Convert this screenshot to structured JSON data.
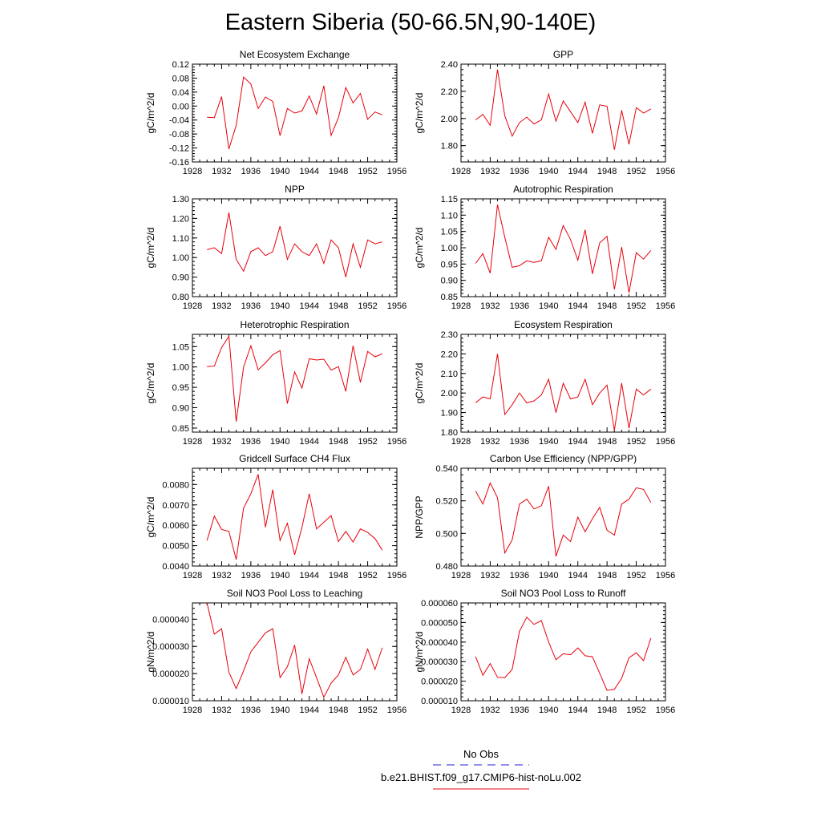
{
  "title": "Eastern Siberia (50-66.5N,90-140E)",
  "colors": {
    "model": "#e8000b",
    "obs": "#1f1fd0"
  },
  "legend": {
    "obs_label": "No Obs",
    "model_label": "b.e21.BHIST.f09_g17.CMIP6-hist-noLu.002"
  },
  "chart_data": [
    {
      "type": "line",
      "title": "Net Ecosystem Exchange",
      "ylabel": "gC/m^2/d",
      "xlim": [
        1928,
        1956
      ],
      "xticks": [
        1928,
        1932,
        1936,
        1940,
        1944,
        1948,
        1952,
        1956
      ],
      "ylim": [
        -0.16,
        0.12
      ],
      "yticks": [
        "-0.16",
        "-0.12",
        "-0.08",
        "-0.04",
        "0.00",
        "0.04",
        "0.08",
        "0.12"
      ],
      "x": [
        1930,
        1931,
        1932,
        1933,
        1934,
        1935,
        1936,
        1937,
        1938,
        1939,
        1940,
        1941,
        1942,
        1943,
        1944,
        1945,
        1946,
        1947,
        1948,
        1949,
        1950,
        1951,
        1952,
        1953,
        1954
      ],
      "series": [
        {
          "values": [
            -0.032,
            -0.033,
            0.027,
            -0.123,
            -0.055,
            0.083,
            0.063,
            -0.007,
            0.026,
            0.013,
            -0.085,
            -0.007,
            -0.02,
            -0.014,
            0.029,
            -0.023,
            0.058,
            -0.084,
            -0.033,
            0.053,
            0.009,
            0.036,
            -0.038,
            -0.017,
            -0.025
          ]
        }
      ]
    },
    {
      "type": "line",
      "title": "GPP",
      "ylabel": "gC/m^2/d",
      "xlim": [
        1928,
        1956
      ],
      "xticks": [
        1928,
        1932,
        1936,
        1940,
        1944,
        1948,
        1952,
        1956
      ],
      "ylim": [
        1.68,
        2.4
      ],
      "yticks": [
        "1.80",
        "2.00",
        "2.20",
        "2.40"
      ],
      "x": [
        1930,
        1931,
        1932,
        1933,
        1934,
        1935,
        1936,
        1937,
        1938,
        1939,
        1940,
        1941,
        1942,
        1943,
        1944,
        1945,
        1946,
        1947,
        1948,
        1949,
        1950,
        1951,
        1952,
        1953,
        1954
      ],
      "series": [
        {
          "values": [
            1.99,
            2.03,
            1.95,
            2.36,
            2.02,
            1.87,
            1.97,
            2.01,
            1.96,
            1.99,
            2.18,
            1.98,
            2.13,
            2.05,
            1.97,
            2.12,
            1.89,
            2.1,
            2.09,
            1.77,
            2.06,
            1.81,
            2.08,
            2.04,
            2.07
          ]
        }
      ]
    },
    {
      "type": "line",
      "title": "NPP",
      "ylabel": "gC/m^2/d",
      "xlim": [
        1928,
        1956
      ],
      "xticks": [
        1928,
        1932,
        1936,
        1940,
        1944,
        1948,
        1952,
        1956
      ],
      "ylim": [
        0.8,
        1.3
      ],
      "yticks": [
        "0.80",
        "0.90",
        "1.00",
        "1.10",
        "1.20",
        "1.30"
      ],
      "x": [
        1930,
        1931,
        1932,
        1933,
        1934,
        1935,
        1936,
        1937,
        1938,
        1939,
        1940,
        1941,
        1942,
        1943,
        1944,
        1945,
        1946,
        1947,
        1948,
        1949,
        1950,
        1951,
        1952,
        1953,
        1954
      ],
      "series": [
        {
          "values": [
            1.04,
            1.05,
            1.02,
            1.23,
            0.99,
            0.93,
            1.03,
            1.05,
            1.01,
            1.03,
            1.16,
            0.99,
            1.07,
            1.03,
            1.01,
            1.07,
            0.97,
            1.09,
            1.05,
            0.9,
            1.07,
            0.95,
            1.09,
            1.07,
            1.08
          ]
        }
      ]
    },
    {
      "type": "line",
      "title": "Autotrophic Respiration",
      "ylabel": "gC/m^2/d",
      "xlim": [
        1928,
        1956
      ],
      "xticks": [
        1928,
        1932,
        1936,
        1940,
        1944,
        1948,
        1952,
        1956
      ],
      "ylim": [
        0.85,
        1.15
      ],
      "yticks": [
        "0.85",
        "0.90",
        "0.95",
        "1.00",
        "1.05",
        "1.10",
        "1.15"
      ],
      "x": [
        1930,
        1931,
        1932,
        1933,
        1934,
        1935,
        1936,
        1937,
        1938,
        1939,
        1940,
        1941,
        1942,
        1943,
        1944,
        1945,
        1946,
        1947,
        1948,
        1949,
        1950,
        1951,
        1952,
        1953,
        1954
      ],
      "series": [
        {
          "values": [
            0.952,
            0.982,
            0.922,
            1.132,
            1.032,
            0.94,
            0.945,
            0.96,
            0.955,
            0.96,
            1.032,
            0.995,
            1.068,
            1.025,
            0.962,
            1.055,
            0.92,
            1.015,
            1.035,
            0.872,
            1.002,
            0.862,
            0.985,
            0.965,
            0.992
          ]
        }
      ]
    },
    {
      "type": "line",
      "title": "Heterotrophic Respiration",
      "ylabel": "gC/m^2/d",
      "xlim": [
        1928,
        1956
      ],
      "xticks": [
        1928,
        1932,
        1936,
        1940,
        1944,
        1948,
        1952,
        1956
      ],
      "ylim": [
        0.84,
        1.08
      ],
      "yticks": [
        "0.85",
        "0.90",
        "0.95",
        "1.00",
        "1.05"
      ],
      "x": [
        1930,
        1931,
        1932,
        1933,
        1934,
        1935,
        1936,
        1937,
        1938,
        1939,
        1940,
        1941,
        1942,
        1943,
        1944,
        1945,
        1946,
        1947,
        1948,
        1949,
        1950,
        1951,
        1952,
        1953,
        1954
      ],
      "series": [
        {
          "values": [
            1.001,
            1.002,
            1.048,
            1.075,
            0.866,
            1.0,
            1.052,
            0.993,
            1.01,
            1.03,
            1.04,
            0.91,
            0.988,
            0.948,
            1.02,
            1.017,
            1.019,
            0.992,
            1.001,
            0.94,
            1.052,
            0.962,
            1.038,
            1.025,
            1.032
          ]
        }
      ]
    },
    {
      "type": "line",
      "title": "Ecosystem Respiration",
      "ylabel": "gC/m^2/d",
      "xlim": [
        1928,
        1956
      ],
      "xticks": [
        1928,
        1932,
        1936,
        1940,
        1944,
        1948,
        1952,
        1956
      ],
      "ylim": [
        1.8,
        2.3
      ],
      "yticks": [
        "1.80",
        "1.90",
        "2.00",
        "2.10",
        "2.20",
        "2.30"
      ],
      "x": [
        1930,
        1931,
        1932,
        1933,
        1934,
        1935,
        1936,
        1937,
        1938,
        1939,
        1940,
        1941,
        1942,
        1943,
        1944,
        1945,
        1946,
        1947,
        1948,
        1949,
        1950,
        1951,
        1952,
        1953,
        1954
      ],
      "series": [
        {
          "values": [
            1.95,
            1.98,
            1.97,
            2.2,
            1.89,
            1.94,
            2.0,
            1.95,
            1.96,
            1.99,
            2.07,
            1.9,
            2.05,
            1.97,
            1.98,
            2.07,
            1.94,
            2.0,
            2.04,
            1.81,
            2.05,
            1.82,
            2.02,
            1.99,
            2.02
          ]
        }
      ]
    },
    {
      "type": "line",
      "title": "Gridcell Surface CH4 Flux",
      "ylabel": "gC/m^2/d",
      "xlim": [
        1928,
        1956
      ],
      "xticks": [
        1928,
        1932,
        1936,
        1940,
        1944,
        1948,
        1952,
        1956
      ],
      "ylim": [
        0.004,
        0.0088
      ],
      "yticks": [
        "0.0040",
        "0.0050",
        "0.0060",
        "0.0070",
        "0.0080"
      ],
      "x": [
        1930,
        1931,
        1932,
        1933,
        1934,
        1935,
        1936,
        1937,
        1938,
        1939,
        1940,
        1941,
        1942,
        1943,
        1944,
        1945,
        1946,
        1947,
        1948,
        1949,
        1950,
        1951,
        1952,
        1953,
        1954
      ],
      "series": [
        {
          "values": [
            0.00525,
            0.00645,
            0.0058,
            0.0057,
            0.00432,
            0.00685,
            0.00755,
            0.0085,
            0.0059,
            0.00775,
            0.00525,
            0.0061,
            0.00455,
            0.0059,
            0.00755,
            0.00582,
            0.00615,
            0.00648,
            0.0052,
            0.0057,
            0.00518,
            0.00582,
            0.00565,
            0.00535,
            0.00478
          ]
        }
      ]
    },
    {
      "type": "line",
      "title": "Carbon Use Efficiency (NPP/GPP)",
      "ylabel": "NPP/GPP",
      "xlim": [
        1928,
        1956
      ],
      "xticks": [
        1928,
        1932,
        1936,
        1940,
        1944,
        1948,
        1952,
        1956
      ],
      "ylim": [
        0.48,
        0.54
      ],
      "yticks": [
        "0.480",
        "0.500",
        "0.520",
        "0.540"
      ],
      "x": [
        1930,
        1931,
        1932,
        1933,
        1934,
        1935,
        1936,
        1937,
        1938,
        1939,
        1940,
        1941,
        1942,
        1943,
        1944,
        1945,
        1946,
        1947,
        1948,
        1949,
        1950,
        1951,
        1952,
        1953,
        1954
      ],
      "series": [
        {
          "values": [
            0.526,
            0.518,
            0.531,
            0.522,
            0.488,
            0.496,
            0.518,
            0.521,
            0.515,
            0.517,
            0.529,
            0.486,
            0.499,
            0.495,
            0.51,
            0.501,
            0.509,
            0.516,
            0.502,
            0.499,
            0.518,
            0.521,
            0.528,
            0.527,
            0.519
          ]
        }
      ]
    },
    {
      "type": "line",
      "title": "Soil NO3 Pool Loss to Leaching",
      "ylabel": "gN/m^2/d",
      "xlim": [
        1928,
        1956
      ],
      "xticks": [
        1928,
        1932,
        1936,
        1940,
        1944,
        1948,
        1952,
        1956
      ],
      "ylim": [
        1e-05,
        4.6e-05
      ],
      "yticks": [
        "0.000010",
        "0.000020",
        "0.000030",
        "0.000040"
      ],
      "x": [
        1930,
        1931,
        1932,
        1933,
        1934,
        1935,
        1936,
        1937,
        1938,
        1939,
        1940,
        1941,
        1942,
        1943,
        1944,
        1945,
        1946,
        1947,
        1948,
        1949,
        1950,
        1951,
        1952,
        1953,
        1954
      ],
      "series": [
        {
          "values": [
            4.6e-05,
            3.45e-05,
            3.65e-05,
            2.05e-05,
            1.45e-05,
            2.1e-05,
            2.8e-05,
            3.15e-05,
            3.5e-05,
            3.65e-05,
            1.85e-05,
            2.25e-05,
            3.05e-05,
            1.25e-05,
            2.55e-05,
            1.85e-05,
            1.13e-05,
            1.65e-05,
            1.95e-05,
            2.6e-05,
            1.95e-05,
            2.15e-05,
            2.9e-05,
            2.15e-05,
            2.95e-05
          ]
        }
      ]
    },
    {
      "type": "line",
      "title": "Soil NO3 Pool Loss to Runoff",
      "ylabel": "gN/m^2/d",
      "xlim": [
        1928,
        1956
      ],
      "xticks": [
        1928,
        1932,
        1936,
        1940,
        1944,
        1948,
        1952,
        1956
      ],
      "ylim": [
        1e-05,
        6e-05
      ],
      "yticks": [
        "0.000010",
        "0.000020",
        "0.000030",
        "0.000040",
        "0.000050",
        "0.000060"
      ],
      "x": [
        1930,
        1931,
        1932,
        1933,
        1934,
        1935,
        1936,
        1937,
        1938,
        1939,
        1940,
        1941,
        1942,
        1943,
        1944,
        1945,
        1946,
        1947,
        1948,
        1949,
        1950,
        1951,
        1952,
        1953,
        1954
      ],
      "series": [
        {
          "values": [
            3.25e-05,
            2.3e-05,
            2.9e-05,
            2.2e-05,
            2.18e-05,
            2.6e-05,
            4.55e-05,
            5.27e-05,
            4.9e-05,
            5.1e-05,
            4e-05,
            3.1e-05,
            3.4e-05,
            3.35e-05,
            3.7e-05,
            3.3e-05,
            3.25e-05,
            2.4e-05,
            1.53e-05,
            1.58e-05,
            2.15e-05,
            3.2e-05,
            3.45e-05,
            3.05e-05,
            4.2e-05
          ]
        }
      ]
    }
  ]
}
